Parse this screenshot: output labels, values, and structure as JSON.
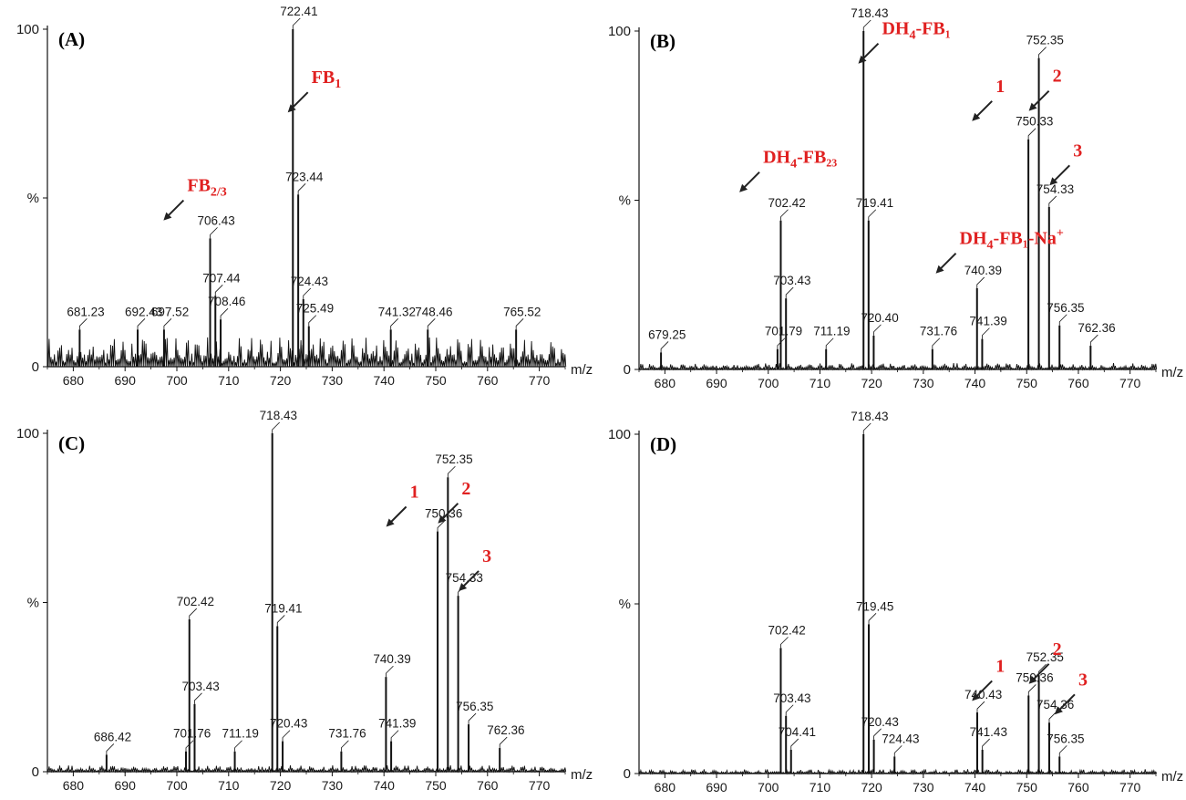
{
  "figure": {
    "colors": {
      "trace": "#111111",
      "axis": "#111111",
      "annotation": "#e02020",
      "arrow": "#222222"
    },
    "icons": {
      "arrow": "arrow-icon"
    }
  },
  "chart_data": [
    {
      "type": "line",
      "panel_label": "(A)",
      "xlabel": "m/z",
      "ylabel": "%",
      "xlim": [
        675,
        775
      ],
      "ylim": [
        0,
        100
      ],
      "x_ticks": [
        680,
        690,
        700,
        710,
        720,
        730,
        740,
        750,
        760,
        770
      ],
      "y_ticks": [
        {
          "value": 0,
          "label": "0"
        },
        {
          "value": 50,
          "label": "%"
        },
        {
          "value": 100,
          "label": "100"
        }
      ],
      "baseline": 7,
      "peaks": [
        {
          "x": 681.23,
          "y": 11,
          "label": "681.23"
        },
        {
          "x": 692.43,
          "y": 11,
          "label": "692.43"
        },
        {
          "x": 697.52,
          "y": 11,
          "label": "697.52"
        },
        {
          "x": 706.43,
          "y": 38,
          "label": "706.43"
        },
        {
          "x": 707.44,
          "y": 21,
          "label": "707.44"
        },
        {
          "x": 708.46,
          "y": 14,
          "label": "708.46"
        },
        {
          "x": 722.41,
          "y": 100,
          "label": "722.41"
        },
        {
          "x": 723.44,
          "y": 51,
          "label": "723.44"
        },
        {
          "x": 724.43,
          "y": 20,
          "label": "724.43"
        },
        {
          "x": 725.49,
          "y": 12,
          "label": "725.49"
        },
        {
          "x": 741.32,
          "y": 11,
          "label": "741.32"
        },
        {
          "x": 748.46,
          "y": 11,
          "label": "748.46"
        },
        {
          "x": 765.52,
          "y": 11,
          "label": "765.52"
        }
      ],
      "annotations": [
        {
          "main": "FB",
          "sub": "1",
          "sup": "",
          "suffix": "",
          "x": 726,
          "y": 84
        },
        {
          "main": "FB",
          "sub": "2/3",
          "sup": "",
          "suffix": "",
          "x": 702,
          "y": 52
        }
      ]
    },
    {
      "type": "line",
      "panel_label": "(B)",
      "xlabel": "m/z",
      "ylabel": "%",
      "xlim": [
        675,
        775
      ],
      "ylim": [
        0,
        100
      ],
      "x_ticks": [
        680,
        690,
        700,
        710,
        720,
        730,
        740,
        750,
        760,
        770
      ],
      "y_ticks": [
        {
          "value": 0,
          "label": "0"
        },
        {
          "value": 50,
          "label": "%"
        },
        {
          "value": 100,
          "label": "100"
        }
      ],
      "baseline": 1.5,
      "peaks": [
        {
          "x": 679.25,
          "y": 5,
          "label": "679.25"
        },
        {
          "x": 701.79,
          "y": 6,
          "label": "701.79"
        },
        {
          "x": 702.42,
          "y": 44,
          "label": "702.42"
        },
        {
          "x": 703.43,
          "y": 21,
          "label": "703.43"
        },
        {
          "x": 711.19,
          "y": 6,
          "label": "711.19"
        },
        {
          "x": 718.43,
          "y": 100,
          "label": "718.43"
        },
        {
          "x": 719.41,
          "y": 44,
          "label": "719.41"
        },
        {
          "x": 720.4,
          "y": 10,
          "label": "720.40"
        },
        {
          "x": 731.76,
          "y": 6,
          "label": "731.76"
        },
        {
          "x": 740.39,
          "y": 24,
          "label": "740.39"
        },
        {
          "x": 741.39,
          "y": 9,
          "label": "741.39"
        },
        {
          "x": 750.33,
          "y": 68,
          "label": "750.33"
        },
        {
          "x": 752.35,
          "y": 92,
          "label": "752.35"
        },
        {
          "x": 754.33,
          "y": 48,
          "label": "754.33"
        },
        {
          "x": 756.35,
          "y": 13,
          "label": "756.35"
        },
        {
          "x": 762.36,
          "y": 7,
          "label": "762.36"
        }
      ],
      "annotations": [
        {
          "main": "DH",
          "sub": "4",
          "sup": "",
          "suffix": "-FB₁",
          "x": 722,
          "y": 99
        },
        {
          "main": "DH",
          "sub": "4",
          "sup": "",
          "suffix": "-FB₂₃",
          "x": 699,
          "y": 61
        },
        {
          "main": "DH",
          "sub": "4",
          "sup": "+",
          "suffix": "-FB₁-Na",
          "x": 737,
          "y": 37
        },
        {
          "main": "1",
          "sub": "",
          "sup": "",
          "suffix": "",
          "x": 744,
          "y": 82
        },
        {
          "main": "2",
          "sub": "",
          "sup": "",
          "suffix": "",
          "x": 755,
          "y": 85
        },
        {
          "main": "3",
          "sub": "",
          "sup": "",
          "suffix": "",
          "x": 759,
          "y": 63
        }
      ]
    },
    {
      "type": "line",
      "panel_label": "(C)",
      "xlabel": "m/z",
      "ylabel": "%",
      "xlim": [
        675,
        775
      ],
      "ylim": [
        0,
        100
      ],
      "x_ticks": [
        680,
        690,
        700,
        710,
        720,
        730,
        740,
        750,
        760,
        770
      ],
      "y_ticks": [
        {
          "value": 0,
          "label": "0"
        },
        {
          "value": 50,
          "label": "%"
        },
        {
          "value": 100,
          "label": "100"
        }
      ],
      "baseline": 1.5,
      "peaks": [
        {
          "x": 686.42,
          "y": 5,
          "label": "686.42"
        },
        {
          "x": 701.76,
          "y": 6,
          "label": "701.76"
        },
        {
          "x": 702.42,
          "y": 45,
          "label": "702.42"
        },
        {
          "x": 703.43,
          "y": 20,
          "label": "703.43"
        },
        {
          "x": 711.19,
          "y": 6,
          "label": "711.19"
        },
        {
          "x": 718.43,
          "y": 100,
          "label": "718.43"
        },
        {
          "x": 719.41,
          "y": 43,
          "label": "719.41"
        },
        {
          "x": 720.43,
          "y": 9,
          "label": "720.43"
        },
        {
          "x": 731.76,
          "y": 6,
          "label": "731.76"
        },
        {
          "x": 740.39,
          "y": 28,
          "label": "740.39"
        },
        {
          "x": 741.39,
          "y": 9,
          "label": "741.39"
        },
        {
          "x": 750.36,
          "y": 71,
          "label": "750.36"
        },
        {
          "x": 752.35,
          "y": 87,
          "label": "752.35"
        },
        {
          "x": 754.33,
          "y": 52,
          "label": "754.33"
        },
        {
          "x": 756.35,
          "y": 14,
          "label": "756.35"
        },
        {
          "x": 762.36,
          "y": 7,
          "label": "762.36"
        }
      ],
      "annotations": [
        {
          "main": "1",
          "sub": "",
          "sup": "",
          "suffix": "",
          "x": 745,
          "y": 81
        },
        {
          "main": "2",
          "sub": "",
          "sup": "",
          "suffix": "",
          "x": 755,
          "y": 82
        },
        {
          "main": "3",
          "sub": "",
          "sup": "",
          "suffix": "",
          "x": 759,
          "y": 62
        }
      ]
    },
    {
      "type": "line",
      "panel_label": "(D)",
      "xlabel": "m/z",
      "ylabel": "%",
      "xlim": [
        675,
        775
      ],
      "ylim": [
        0,
        100
      ],
      "x_ticks": [
        680,
        690,
        700,
        710,
        720,
        730,
        740,
        750,
        760,
        770
      ],
      "y_ticks": [
        {
          "value": 0,
          "label": "0"
        },
        {
          "value": 50,
          "label": "%"
        },
        {
          "value": 100,
          "label": "100"
        }
      ],
      "baseline": 1,
      "peaks": [
        {
          "x": 702.42,
          "y": 37,
          "label": "702.42"
        },
        {
          "x": 703.43,
          "y": 17,
          "label": "703.43"
        },
        {
          "x": 704.41,
          "y": 7,
          "label": "704.41"
        },
        {
          "x": 718.43,
          "y": 100,
          "label": "718.43"
        },
        {
          "x": 719.45,
          "y": 44,
          "label": "719.45"
        },
        {
          "x": 720.43,
          "y": 10,
          "label": "720.43"
        },
        {
          "x": 724.43,
          "y": 5,
          "label": "724.43"
        },
        {
          "x": 740.43,
          "y": 18,
          "label": "740.43"
        },
        {
          "x": 741.43,
          "y": 7,
          "label": "741.43"
        },
        {
          "x": 750.36,
          "y": 23,
          "label": "750.36"
        },
        {
          "x": 752.35,
          "y": 29,
          "label": "752.35"
        },
        {
          "x": 754.36,
          "y": 15,
          "label": "754.36"
        },
        {
          "x": 756.35,
          "y": 5,
          "label": "756.35"
        }
      ],
      "annotations": [
        {
          "main": "1",
          "sub": "",
          "sup": "",
          "suffix": "",
          "x": 744,
          "y": 30
        },
        {
          "main": "2",
          "sub": "",
          "sup": "",
          "suffix": "",
          "x": 755,
          "y": 35
        },
        {
          "main": "3",
          "sub": "",
          "sup": "",
          "suffix": "",
          "x": 760,
          "y": 26
        }
      ]
    }
  ]
}
